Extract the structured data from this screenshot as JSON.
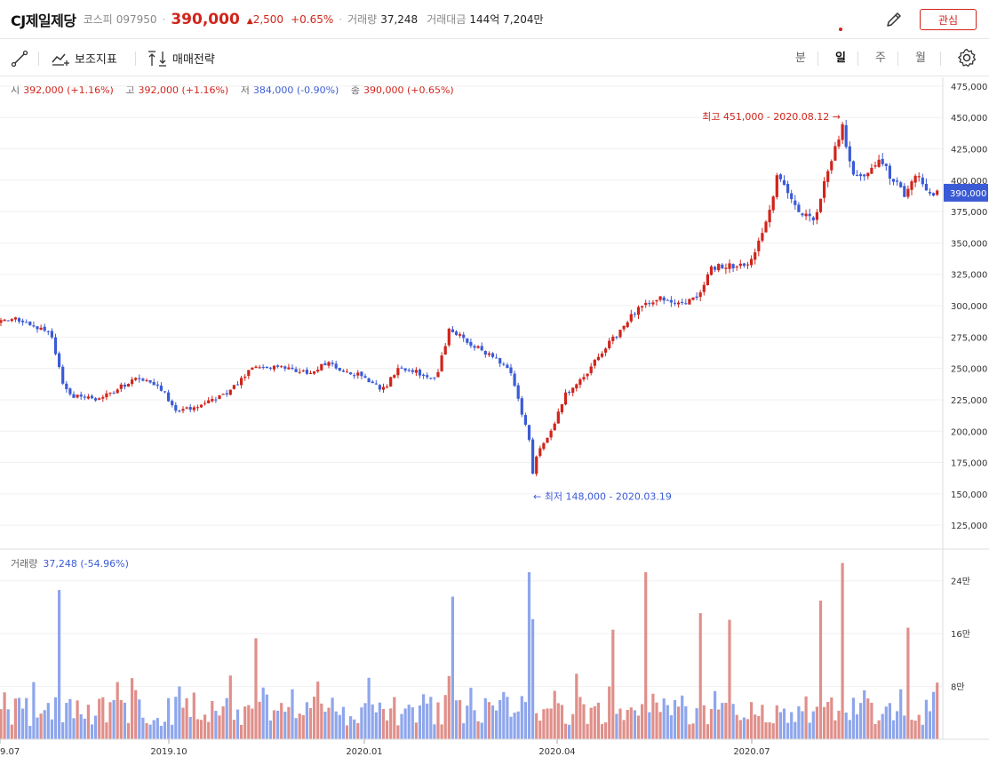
{
  "header": {
    "name": "CJ제일제당",
    "market": "코스피",
    "code": "097950",
    "price": "390,000",
    "change": "2,500",
    "change_pct": "+0.65%",
    "volume_label": "거래량",
    "volume_value": "37,248",
    "amount_label": "거래대금",
    "amount_value": "144억 7,204만",
    "watch_label": "관심"
  },
  "toolbar": {
    "indicator_label": "보조지표",
    "strategy_label": "매매전략",
    "periods": [
      "분",
      "일",
      "주",
      "월"
    ],
    "active_period": "일"
  },
  "ohlc": {
    "open_label": "시",
    "open_value": "392,000 (+1.16%)",
    "high_label": "고",
    "high_value": "392,000 (+1.16%)",
    "low_label": "저",
    "low_value": "384,000 (-0.90%)",
    "close_label": "종",
    "close_value": "390,000 (+0.65%)"
  },
  "volume_legend": {
    "label": "거래량",
    "value": "37,248 (-54.96%)"
  },
  "colors": {
    "up": "#d0241b",
    "down": "#3b5bd6",
    "up_volume": "#e08f8a",
    "down_volume": "#8ea6ec",
    "grid": "#f0f0f0"
  },
  "chart_data": {
    "type": "candlestick",
    "price_ticks": [
      "475,000",
      "450,000",
      "425,000",
      "400,000",
      "375,000",
      "350,000",
      "325,000",
      "300,000",
      "275,000",
      "250,000",
      "225,000",
      "200,000",
      "175,000",
      "150,000",
      "125,000"
    ],
    "price_range": [
      106000,
      482000
    ],
    "volume_ticks": [
      "24만",
      "16만",
      "8만"
    ],
    "volume_range": [
      0,
      280000
    ],
    "x_labels": [
      "9.07",
      "2019.10",
      "2020.01",
      "2020.04",
      "2020.07"
    ],
    "current_price_label": "390,000",
    "current_price": 390000,
    "high_annotation": "최고 451,000 - 2020.08.12 →",
    "high_value": 451000,
    "low_annotation": "← 최저 148,000 - 2020.03.19",
    "low_value": 148000,
    "price_keypoints": [
      [
        0,
        287000
      ],
      [
        28,
        289000
      ],
      [
        40,
        283000
      ],
      [
        58,
        278000
      ],
      [
        70,
        238000
      ],
      [
        85,
        227000
      ],
      [
        110,
        226000
      ],
      [
        125,
        230000
      ],
      [
        155,
        244000
      ],
      [
        180,
        235000
      ],
      [
        200,
        215000
      ],
      [
        230,
        223000
      ],
      [
        260,
        232000
      ],
      [
        285,
        253000
      ],
      [
        320,
        251000
      ],
      [
        345,
        247000
      ],
      [
        370,
        254000
      ],
      [
        390,
        246000
      ],
      [
        410,
        244000
      ],
      [
        430,
        232000
      ],
      [
        450,
        252000
      ],
      [
        470,
        247000
      ],
      [
        490,
        241000
      ],
      [
        505,
        280000
      ],
      [
        530,
        270000
      ],
      [
        560,
        256000
      ],
      [
        575,
        246000
      ],
      [
        585,
        219000
      ],
      [
        595,
        196000
      ],
      [
        600,
        165000
      ],
      [
        605,
        185000
      ],
      [
        620,
        200000
      ],
      [
        635,
        228000
      ],
      [
        660,
        246000
      ],
      [
        680,
        265000
      ],
      [
        700,
        283000
      ],
      [
        720,
        300000
      ],
      [
        740,
        306000
      ],
      [
        760,
        304000
      ],
      [
        785,
        305000
      ],
      [
        800,
        331000
      ],
      [
        830,
        333000
      ],
      [
        845,
        336000
      ],
      [
        860,
        358000
      ],
      [
        875,
        405000
      ],
      [
        895,
        378000
      ],
      [
        915,
        366000
      ],
      [
        935,
        415000
      ],
      [
        948,
        443000
      ],
      [
        960,
        405000
      ],
      [
        975,
        404000
      ],
      [
        990,
        415000
      ],
      [
        1005,
        401000
      ],
      [
        1020,
        388000
      ],
      [
        1030,
        405000
      ],
      [
        1045,
        389000
      ],
      [
        1058,
        390000
      ]
    ],
    "volume_spikes": [
      [
        68,
        226000
      ],
      [
        200,
        80000
      ],
      [
        288,
        153000
      ],
      [
        510,
        216000
      ],
      [
        597,
        253000
      ],
      [
        601,
        182000
      ],
      [
        688,
        166000
      ],
      [
        728,
        253000
      ],
      [
        790,
        191000
      ],
      [
        820,
        181000
      ],
      [
        925,
        210000
      ],
      [
        948,
        267000
      ],
      [
        1022,
        169000
      ]
    ]
  }
}
